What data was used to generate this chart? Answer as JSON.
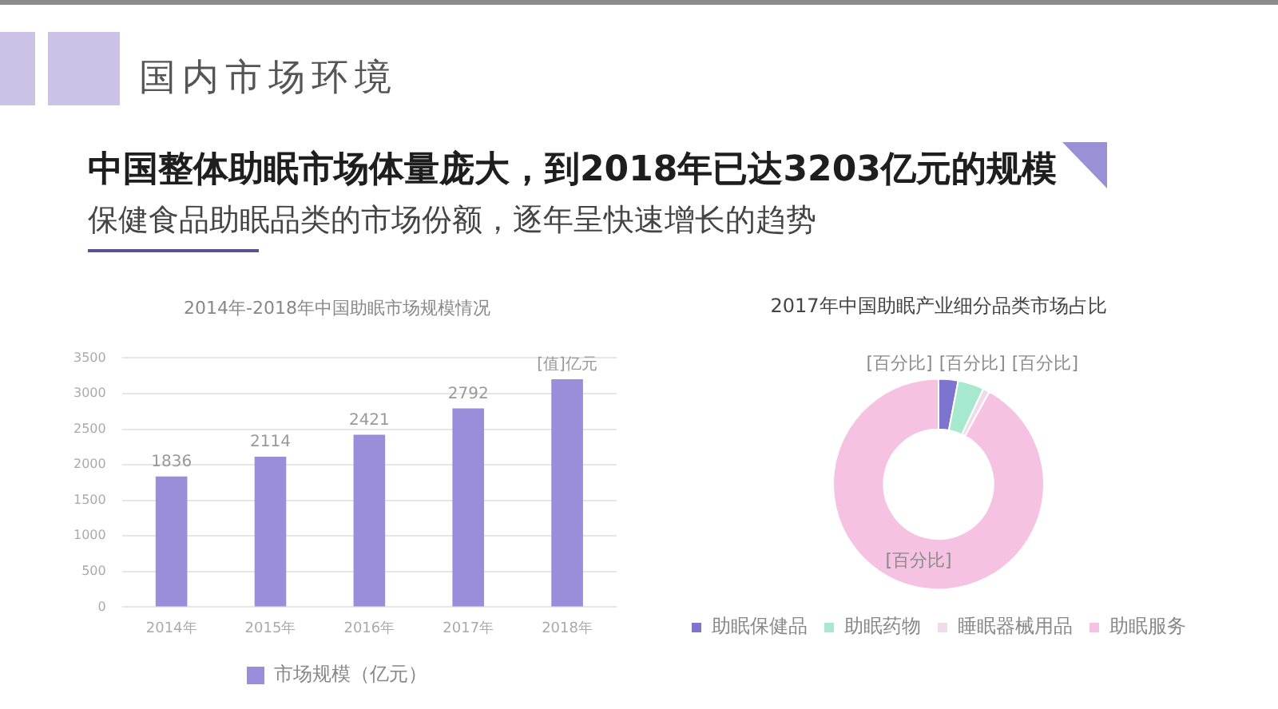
{
  "chart_data": [
    {
      "type": "other",
      "title": "国内市场环境",
      "subtitle": "中国整体助眠市场体量庞大，到2018年已达3203亿元的规模",
      "annotations": [
        "保健食品助眠品类的市场份额，逐年呈快速增长的趋势"
      ]
    },
    {
      "type": "bar",
      "title": "2014年-2018年中国助眠市场规模情况",
      "categories": [
        "2014年",
        "2015年",
        "2016年",
        "2017年",
        "2018年"
      ],
      "series": [
        {
          "name": "市场规模（亿元）",
          "color": "#9a8edb",
          "values": [
            1836,
            2114,
            2421,
            2792,
            3203
          ],
          "value_labels": [
            "1836",
            "2114",
            "2421",
            "2792",
            "[值]亿元"
          ]
        }
      ],
      "ylim": [
        0,
        3500
      ],
      "yticks": [
        0,
        500,
        1000,
        1500,
        2000,
        2500,
        3000,
        3500
      ],
      "grid": "y",
      "legend": "bottom"
    },
    {
      "type": "donut",
      "title": "2017年中国助眠产业细分品类市场占比",
      "categories": [
        "助眠保健品",
        "助眠药物",
        "睡眠器械用品",
        "助眠服务"
      ],
      "values": [
        3,
        4,
        1,
        92
      ],
      "colors": [
        "#7d74cf",
        "#a6e9cf",
        "#eedde8",
        "#f5c2e2"
      ],
      "value_labels": [
        "[百分比]",
        "[百分比]",
        "[百分比]",
        "[百分比]"
      ],
      "legend": "bottom"
    }
  ]
}
